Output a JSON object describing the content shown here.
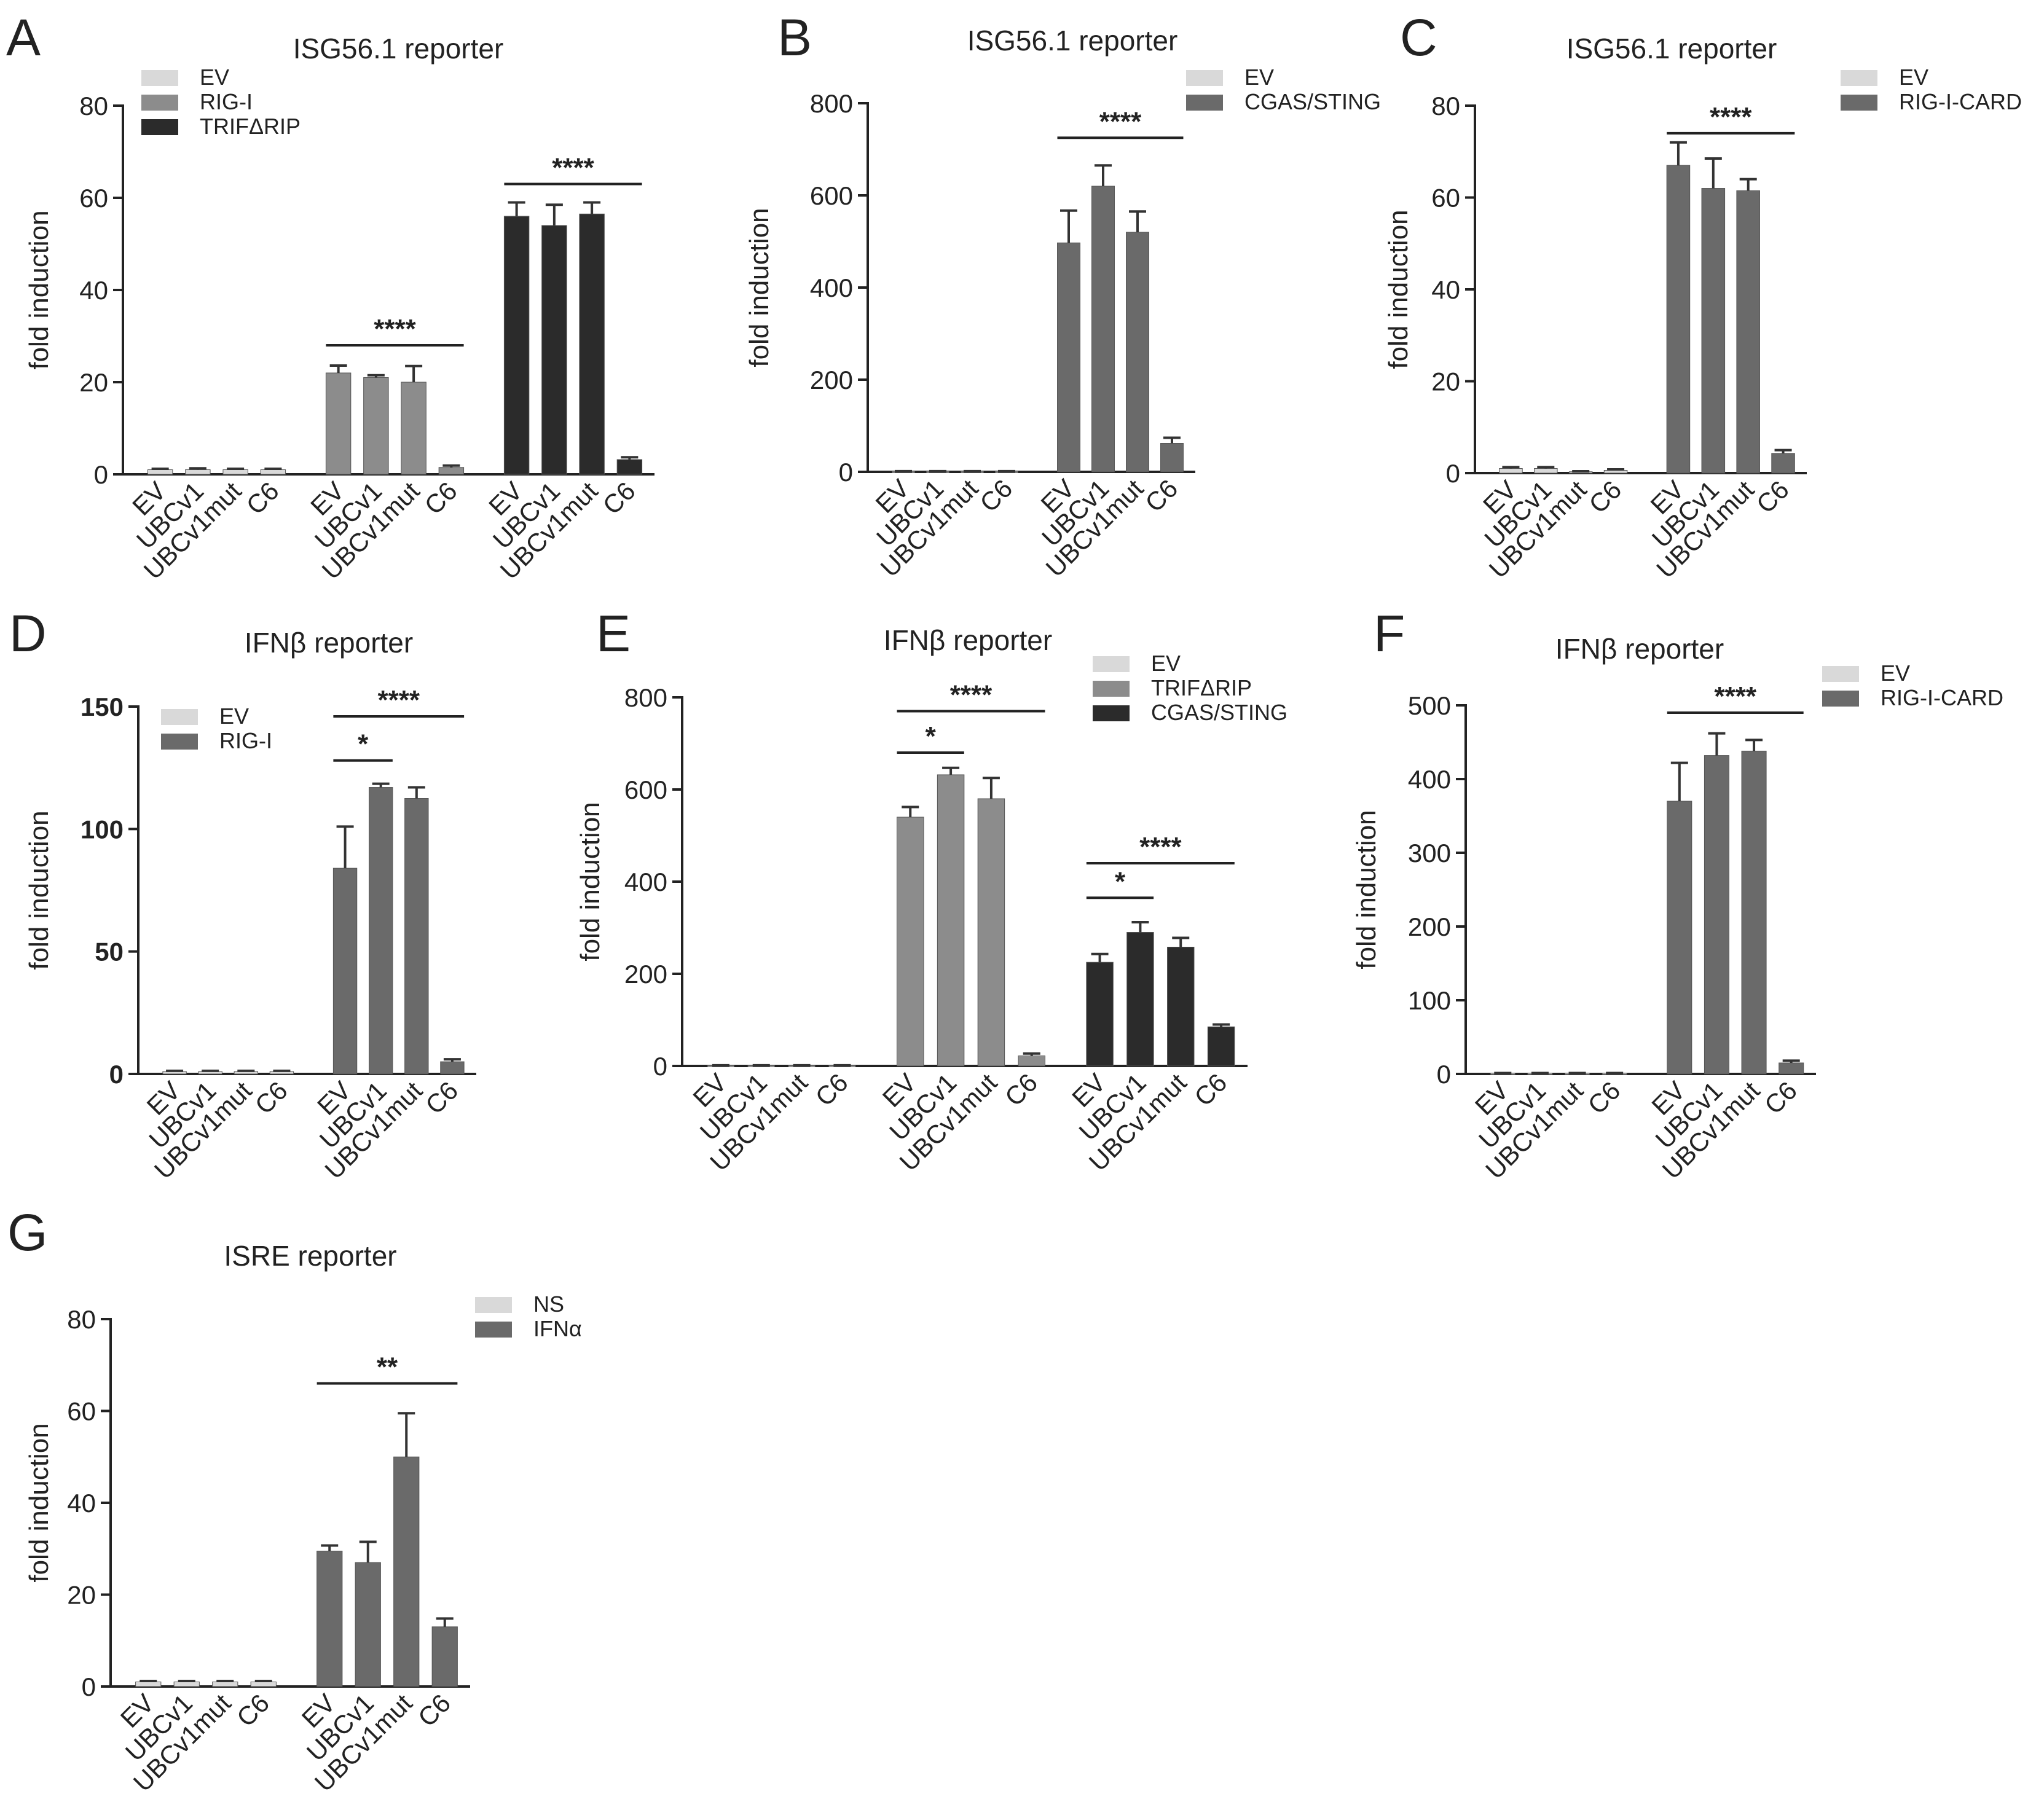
{
  "figure": {
    "description": "Reporter assay fold induction panels"
  },
  "colors": {
    "EV": "#d9d9d9",
    "light": "#8c8c8c",
    "mid": "#6a6a6a",
    "dark": "#2b2b2b",
    "axis": "#222222"
  },
  "chart_data": [
    {
      "panel": "A",
      "type": "bar",
      "title": "ISG56.1 reporter",
      "ylabel": "fold induction",
      "ylim": [
        0,
        80
      ],
      "yticks": [
        0,
        20,
        40,
        60,
        80
      ],
      "categories": [
        "EV",
        "UBCv1",
        "UBCv1mut",
        "C6"
      ],
      "series": [
        {
          "name": "EV",
          "color": "EV",
          "values": [
            1,
            1,
            1,
            1
          ],
          "errors": [
            0.2,
            0.3,
            0.2,
            0.2
          ]
        },
        {
          "name": "RIG-I",
          "color": "light",
          "values": [
            22,
            21,
            20,
            1.5
          ],
          "errors": [
            1.6,
            0.5,
            3.5,
            0.4
          ]
        },
        {
          "name": "TRIFΔRIP",
          "color": "dark",
          "values": [
            56,
            54,
            56.5,
            3.2
          ],
          "errors": [
            3,
            4.5,
            2.5,
            0.5
          ]
        }
      ],
      "significance": [
        {
          "series": 1,
          "from": 0,
          "to": 3,
          "label": "****",
          "y": 28
        },
        {
          "series": 2,
          "from": 0,
          "to": 3,
          "label": "****",
          "y": 63
        }
      ]
    },
    {
      "panel": "B",
      "type": "bar",
      "title": "ISG56.1 reporter",
      "ylabel": "fold induction",
      "ylim": [
        0,
        800
      ],
      "yticks": [
        0,
        200,
        400,
        600,
        800
      ],
      "categories": [
        "EV",
        "UBCv1",
        "UBCv1mut",
        "C6"
      ],
      "series": [
        {
          "name": "EV",
          "color": "EV",
          "values": [
            1,
            1,
            1,
            1
          ],
          "errors": [
            0.5,
            0.5,
            0.5,
            0.5
          ]
        },
        {
          "name": "CGAS/STING",
          "color": "mid",
          "values": [
            497,
            620,
            520,
            62
          ],
          "errors": [
            70,
            45,
            45,
            12
          ]
        }
      ],
      "significance": [
        {
          "series": 1,
          "from": 0,
          "to": 3,
          "label": "****",
          "y": 725
        }
      ]
    },
    {
      "panel": "C",
      "type": "bar",
      "title": "ISG56.1 reporter",
      "ylabel": "fold induction",
      "ylim": [
        0,
        80
      ],
      "yticks": [
        0,
        20,
        40,
        60,
        80
      ],
      "categories": [
        "EV",
        "UBCv1",
        "UBCv1mut",
        "C6"
      ],
      "series": [
        {
          "name": "EV",
          "color": "EV",
          "values": [
            1,
            1,
            0.3,
            0.6
          ],
          "errors": [
            0.3,
            0.3,
            0.1,
            0.2
          ]
        },
        {
          "name": "RIG-I-CARD",
          "color": "mid",
          "values": [
            67,
            62,
            61.5,
            4.3
          ],
          "errors": [
            5,
            6.5,
            2.5,
            0.7
          ]
        }
      ],
      "significance": [
        {
          "series": 1,
          "from": 0,
          "to": 3,
          "label": "****",
          "y": 74
        }
      ]
    },
    {
      "panel": "D",
      "type": "bar",
      "title": "IFNβ reporter",
      "ylabel": "fold induction",
      "ylim": [
        0,
        150
      ],
      "yticks": [
        0,
        50,
        100,
        150
      ],
      "boldTicks": true,
      "categories": [
        "EV",
        "UBCv1",
        "UBCv1mut",
        "C6"
      ],
      "series": [
        {
          "name": "EV",
          "color": "EV",
          "values": [
            1,
            1,
            1,
            1
          ],
          "errors": [
            0.3,
            0.3,
            0.3,
            0.3
          ]
        },
        {
          "name": "RIG-I",
          "color": "mid",
          "values": [
            84,
            117,
            112.5,
            5
          ],
          "errors": [
            17,
            1.5,
            4.5,
            1
          ]
        }
      ],
      "significance": [
        {
          "series": 1,
          "from": 0,
          "to": 1,
          "label": "*",
          "y": 128
        },
        {
          "series": 1,
          "from": 0,
          "to": 3,
          "label": "****",
          "y": 146
        }
      ]
    },
    {
      "panel": "E",
      "type": "bar",
      "title": "IFNβ reporter",
      "ylabel": "fold induction",
      "ylim": [
        0,
        800
      ],
      "yticks": [
        0,
        200,
        400,
        600,
        800
      ],
      "categories": [
        "EV",
        "UBCv1",
        "UBCv1mut",
        "C6"
      ],
      "series": [
        {
          "name": "EV",
          "color": "EV",
          "values": [
            1,
            1,
            1,
            1
          ],
          "errors": [
            0.5,
            0.5,
            0.5,
            0.5
          ]
        },
        {
          "name": "TRIFΔRIP",
          "color": "light",
          "values": [
            540,
            632,
            580,
            22
          ],
          "errors": [
            22,
            15,
            45,
            5
          ]
        },
        {
          "name": "CGAS/STING",
          "color": "dark",
          "values": [
            225,
            290,
            258,
            85
          ],
          "errors": [
            18,
            22,
            20,
            5
          ]
        }
      ],
      "significance": [
        {
          "series": 1,
          "from": 0,
          "to": 1,
          "label": "*",
          "y": 680
        },
        {
          "series": 1,
          "from": 0,
          "to": 3,
          "label": "****",
          "y": 770
        },
        {
          "series": 2,
          "from": 0,
          "to": 1,
          "label": "*",
          "y": 365
        },
        {
          "series": 2,
          "from": 0,
          "to": 3,
          "label": "****",
          "y": 440
        }
      ]
    },
    {
      "panel": "F",
      "type": "bar",
      "title": "IFNβ reporter",
      "ylabel": "fold induction",
      "ylim": [
        0,
        500
      ],
      "yticks": [
        0,
        100,
        200,
        300,
        400,
        500
      ],
      "categories": [
        "EV",
        "UBCv1",
        "UBCv1mut",
        "C6"
      ],
      "series": [
        {
          "name": "EV",
          "color": "EV",
          "values": [
            1,
            1,
            1,
            1
          ],
          "errors": [
            0.3,
            0.3,
            0.3,
            0.3
          ]
        },
        {
          "name": "RIG-I-CARD",
          "color": "mid",
          "values": [
            370,
            432,
            438,
            15
          ],
          "errors": [
            52,
            30,
            15,
            3
          ]
        }
      ],
      "significance": [
        {
          "series": 1,
          "from": 0,
          "to": 3,
          "label": "****",
          "y": 490
        }
      ]
    },
    {
      "panel": "G",
      "type": "bar",
      "title": "ISRE reporter",
      "ylabel": "fold induction",
      "ylim": [
        0,
        80
      ],
      "yticks": [
        0,
        20,
        40,
        60,
        80
      ],
      "categories": [
        "EV",
        "UBCv1",
        "UBCv1mut",
        "C6"
      ],
      "series": [
        {
          "name": "NS",
          "color": "EV",
          "values": [
            1,
            1,
            1,
            1
          ],
          "errors": [
            0.2,
            0.2,
            0.2,
            0.2
          ]
        },
        {
          "name": "IFNα",
          "color": "mid",
          "values": [
            29.5,
            27,
            50,
            13
          ],
          "errors": [
            1.2,
            4.5,
            9.5,
            1.8
          ]
        }
      ],
      "significance": [
        {
          "series": 1,
          "from": 0,
          "to": 3,
          "label": "**",
          "y": 66
        }
      ]
    }
  ]
}
